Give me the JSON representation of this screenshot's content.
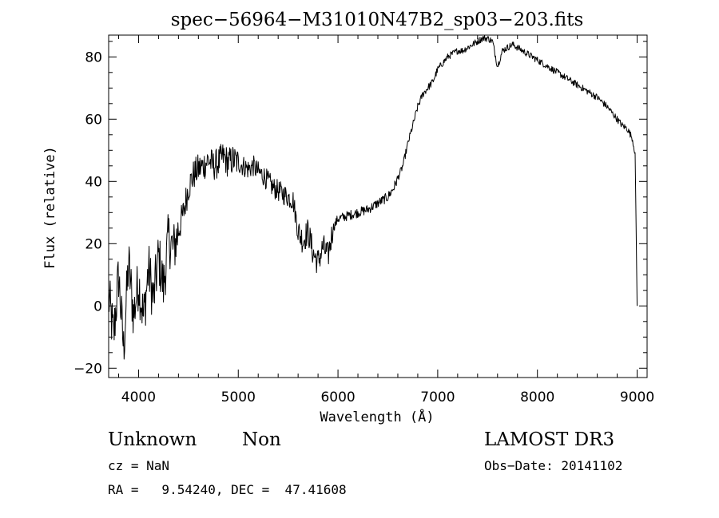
{
  "chart_data": {
    "type": "line",
    "title": "spec−56964−M31010N47B2_sp03−203.fits",
    "xlabel": "Wavelength (Å)",
    "ylabel": "Flux (relative)",
    "xlim": [
      3700,
      9100
    ],
    "ylim": [
      -23,
      87
    ],
    "xticks": [
      4000,
      5000,
      6000,
      7000,
      8000,
      9000
    ],
    "yticks": [
      -20,
      0,
      20,
      40,
      60,
      80
    ],
    "xtick_labels": [
      "4000",
      "5000",
      "6000",
      "7000",
      "8000",
      "9000"
    ],
    "ytick_labels": [
      "−20",
      "0",
      "20",
      "40",
      "60",
      "80"
    ],
    "grid": false,
    "series": [
      {
        "name": "flux",
        "x": [
          3700,
          3750,
          3800,
          3850,
          3900,
          3950,
          4000,
          4050,
          4100,
          4150,
          4200,
          4250,
          4300,
          4350,
          4400,
          4450,
          4500,
          4550,
          4600,
          4650,
          4700,
          4750,
          4800,
          4850,
          4900,
          4950,
          5000,
          5050,
          5100,
          5150,
          5200,
          5250,
          5300,
          5350,
          5400,
          5450,
          5500,
          5550,
          5600,
          5650,
          5700,
          5750,
          5800,
          5850,
          5900,
          5950,
          6000,
          6100,
          6200,
          6300,
          6400,
          6500,
          6560,
          6600,
          6650,
          6700,
          6750,
          6800,
          6850,
          6900,
          6950,
          7000,
          7050,
          7100,
          7150,
          7200,
          7250,
          7300,
          7350,
          7400,
          7450,
          7500,
          7550,
          7600,
          7650,
          7700,
          7750,
          7800,
          7850,
          7900,
          7950,
          8000,
          8100,
          8200,
          8300,
          8400,
          8500,
          8600,
          8700,
          8800,
          8850,
          8900,
          8950,
          8980,
          9000
        ],
        "values": [
          3,
          -10,
          10,
          -14,
          14,
          -3,
          8,
          -4,
          12,
          2,
          16,
          6,
          22,
          18,
          24,
          30,
          38,
          42,
          44,
          45,
          47,
          45,
          46,
          48,
          46,
          47,
          46,
          45,
          44,
          45,
          43,
          42,
          40,
          38,
          37,
          36,
          35,
          34,
          24,
          21,
          24,
          17,
          14,
          19,
          16,
          25,
          28,
          29,
          30,
          31,
          33,
          35,
          38,
          41,
          45,
          52,
          58,
          64,
          68,
          70,
          72,
          76,
          78,
          80,
          81,
          82,
          82,
          83,
          84,
          85,
          86,
          86,
          85,
          77,
          82,
          83,
          84,
          83,
          82,
          81,
          80,
          79,
          77,
          75,
          73,
          71,
          69,
          67,
          64,
          60,
          58,
          57,
          54,
          49,
          0
        ]
      }
    ]
  },
  "annotations": {
    "object_class": "Unknown",
    "object_subclass": "Non",
    "redshift": "cz = NaN",
    "coords": "RA =   9.54240, DEC =  47.41608",
    "survey": "LAMOST DR3",
    "obs_date": "Obs−Date: 20141102"
  }
}
